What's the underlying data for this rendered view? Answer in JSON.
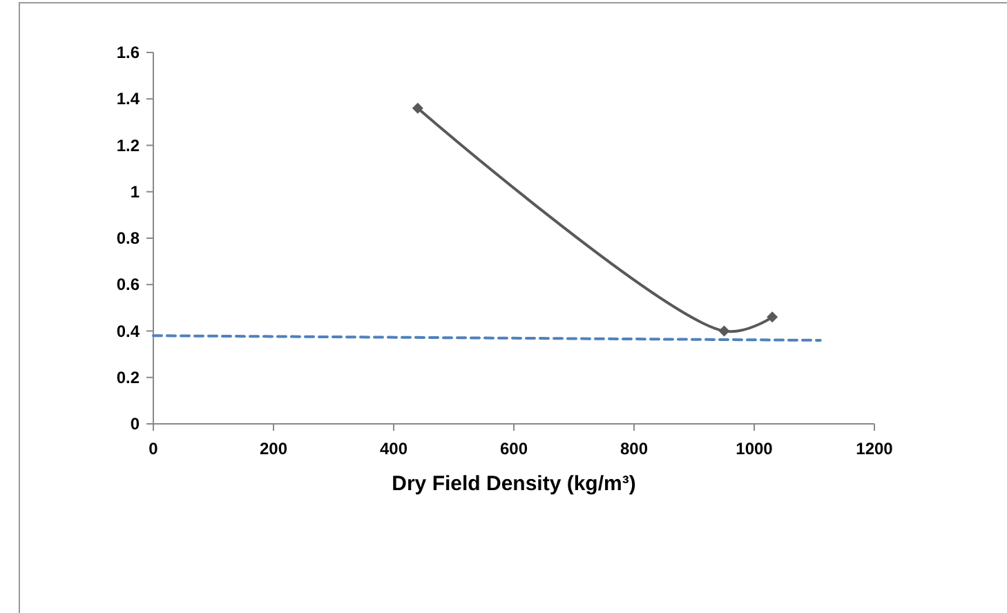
{
  "chart_data": {
    "type": "line",
    "xlabel": "Dry Field Density (kg/m³)",
    "xlim": [
      0,
      1200
    ],
    "xticks": [
      0,
      200,
      400,
      600,
      800,
      1000,
      1200
    ],
    "ylim": [
      0,
      1.6
    ],
    "yticks": [
      0,
      0.2,
      0.4,
      0.6,
      0.8,
      1,
      1.2,
      1.4,
      1.6
    ],
    "grid": false,
    "series": [
      {
        "color": "#595959",
        "x": [
          440,
          950,
          1030
        ],
        "values": [
          1.36,
          0.4,
          0.46
        ],
        "marker": "diamond",
        "line_style": "solid"
      },
      {
        "color": "#4f81bd",
        "x": [
          0,
          1110
        ],
        "values": [
          0.38,
          0.36
        ],
        "marker": "none",
        "line_style": "dashed"
      }
    ]
  }
}
